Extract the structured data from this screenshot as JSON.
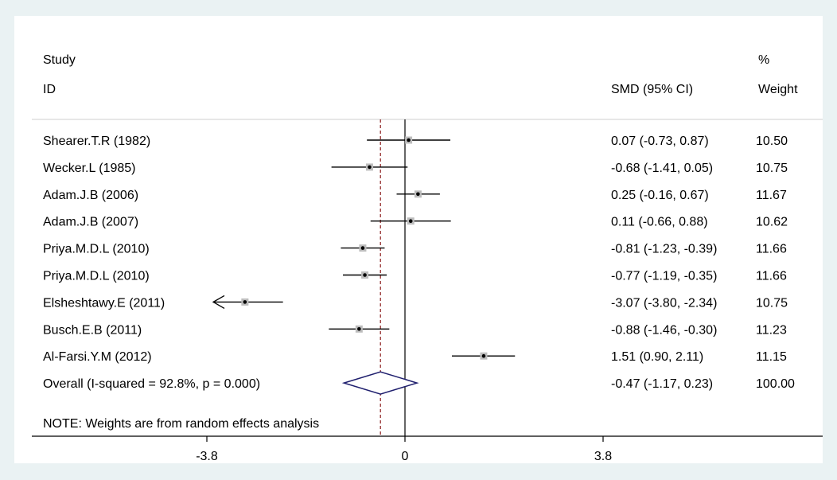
{
  "headers": {
    "study_line1": "Study",
    "study_line2": "ID",
    "effect": "SMD (95% CI)",
    "weight_line1": "%",
    "weight_line2": "Weight"
  },
  "note": "NOTE: Weights are from random effects analysis",
  "colors": {
    "background": "#eaf2f3",
    "panel": "#ffffff",
    "diamond": "#1f1f6e",
    "overall_line": "#8b1a1a",
    "line": "#000000"
  },
  "chart_data": {
    "type": "forest",
    "measure": "SMD",
    "x_ticks": [
      {
        "value": -3.8,
        "label": "-3.8"
      },
      {
        "value": 0,
        "label": "0"
      },
      {
        "value": 3.8,
        "label": "3.8"
      }
    ],
    "xlim": [
      -3.8,
      3.8
    ],
    "reference_line": 0,
    "studies": [
      {
        "label": "Shearer.T.R (1982)",
        "smd": 0.07,
        "lo": -0.73,
        "hi": 0.87,
        "ci_text": "0.07 (-0.73, 0.87)",
        "weight": "10.50"
      },
      {
        "label": "Wecker.L (1985)",
        "smd": -0.68,
        "lo": -1.41,
        "hi": 0.05,
        "ci_text": "-0.68 (-1.41, 0.05)",
        "weight": "10.75"
      },
      {
        "label": "Adam.J.B (2006)",
        "smd": 0.25,
        "lo": -0.16,
        "hi": 0.67,
        "ci_text": "0.25 (-0.16, 0.67)",
        "weight": "11.67"
      },
      {
        "label": "Adam.J.B (2007)",
        "smd": 0.11,
        "lo": -0.66,
        "hi": 0.88,
        "ci_text": "0.11 (-0.66, 0.88)",
        "weight": "10.62"
      },
      {
        "label": "Priya.M.D.L (2010)",
        "smd": -0.81,
        "lo": -1.23,
        "hi": -0.39,
        "ci_text": "-0.81 (-1.23, -0.39)",
        "weight": "11.66"
      },
      {
        "label": "Priya.M.D.L (2010)",
        "smd": -0.77,
        "lo": -1.19,
        "hi": -0.35,
        "ci_text": "-0.77 (-1.19, -0.35)",
        "weight": "11.66"
      },
      {
        "label": "Elsheshtawy.E (2011)",
        "smd": -3.07,
        "lo": -3.8,
        "hi": -2.34,
        "ci_text": "-3.07 (-3.80, -2.34)",
        "weight": "10.75",
        "truncated_left": true
      },
      {
        "label": "Busch.E.B (2011)",
        "smd": -0.88,
        "lo": -1.46,
        "hi": -0.3,
        "ci_text": "-0.88 (-1.46, -0.30)",
        "weight": "11.23"
      },
      {
        "label": "Al-Farsi.Y.M (2012)",
        "smd": 1.51,
        "lo": 0.9,
        "hi": 2.11,
        "ci_text": "1.51 (0.90, 2.11)",
        "weight": "11.15"
      }
    ],
    "overall": {
      "label": "Overall  (I-squared = 92.8%, p = 0.000)",
      "smd": -0.47,
      "lo": -1.17,
      "hi": 0.23,
      "ci_text": "-0.47 (-1.17, 0.23)",
      "weight": "100.00"
    }
  }
}
